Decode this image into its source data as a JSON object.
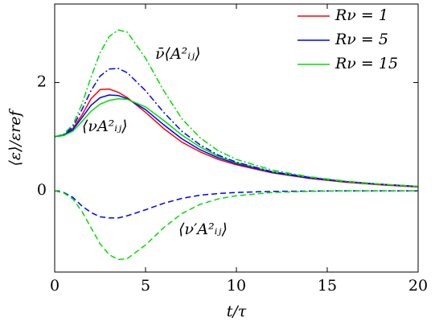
{
  "chart_data": {
    "type": "line",
    "xlabel": "t/τ",
    "ylabel": "⟨ε⟩/εref",
    "x": [
      0,
      0.5,
      1,
      1.5,
      2,
      2.5,
      3,
      3.5,
      4,
      5,
      6,
      7,
      8,
      9,
      10,
      12,
      14,
      16,
      18,
      20
    ],
    "series": [
      {
        "name": "Rν = 1",
        "color": "#ff0000",
        "dash": "solid",
        "values": [
          1,
          1.03,
          1.15,
          1.4,
          1.7,
          1.87,
          1.88,
          1.82,
          1.72,
          1.45,
          1.15,
          0.9,
          0.72,
          0.58,
          0.48,
          0.33,
          0.23,
          0.16,
          0.11,
          0.07
        ]
      },
      {
        "name": "Rν = 5",
        "color": "#0000ff",
        "dash": "solid",
        "values": [
          1,
          1.03,
          1.13,
          1.35,
          1.58,
          1.72,
          1.77,
          1.76,
          1.7,
          1.5,
          1.22,
          0.96,
          0.76,
          0.61,
          0.5,
          0.34,
          0.24,
          0.17,
          0.12,
          0.08
        ]
      },
      {
        "name": "Rν = 15",
        "color": "#00dd00",
        "dash": "solid",
        "values": [
          1,
          1.02,
          1.1,
          1.28,
          1.47,
          1.6,
          1.67,
          1.7,
          1.69,
          1.55,
          1.3,
          1.03,
          0.81,
          0.64,
          0.52,
          0.35,
          0.25,
          0.17,
          0.12,
          0.08
        ]
      },
      {
        "color": "#0000ff",
        "dash": "dashdot",
        "values": [
          1,
          1.04,
          1.18,
          1.5,
          1.85,
          2.12,
          2.25,
          2.26,
          2.18,
          1.85,
          1.45,
          1.1,
          0.85,
          0.66,
          0.53,
          0.35,
          0.25,
          0.17,
          0.12,
          0.08
        ]
      },
      {
        "color": "#00dd00",
        "dash": "dashdot",
        "values": [
          1,
          1.05,
          1.22,
          1.6,
          2.1,
          2.55,
          2.85,
          2.97,
          2.93,
          2.45,
          1.85,
          1.33,
          0.98,
          0.74,
          0.58,
          0.38,
          0.26,
          0.18,
          0.12,
          0.08
        ]
      },
      {
        "color": "#0000ff",
        "dash": "dashed",
        "values": [
          0,
          -0.03,
          -0.12,
          -0.28,
          -0.4,
          -0.48,
          -0.5,
          -0.5,
          -0.46,
          -0.35,
          -0.23,
          -0.14,
          -0.08,
          -0.05,
          -0.03,
          -0.01,
          -0.005,
          0,
          0,
          0
        ]
      },
      {
        "color": "#00dd00",
        "dash": "dashed",
        "values": [
          0,
          -0.04,
          -0.15,
          -0.38,
          -0.68,
          -0.98,
          -1.18,
          -1.27,
          -1.25,
          -1.0,
          -0.68,
          -0.42,
          -0.25,
          -0.15,
          -0.09,
          -0.03,
          -0.01,
          0,
          0,
          0
        ]
      }
    ],
    "annotations": [
      "ν̄⟨A²ᵢⱼ⟩",
      "⟨νA²ᵢⱼ⟩",
      "⟨ν′A²ᵢⱼ⟩"
    ],
    "xlim": [
      0,
      20
    ],
    "xticks": [
      0,
      5,
      10,
      15,
      20
    ],
    "ylim": [
      -1.5,
      3.45
    ],
    "yticks": [
      0,
      2
    ],
    "legend": "upper-right"
  }
}
